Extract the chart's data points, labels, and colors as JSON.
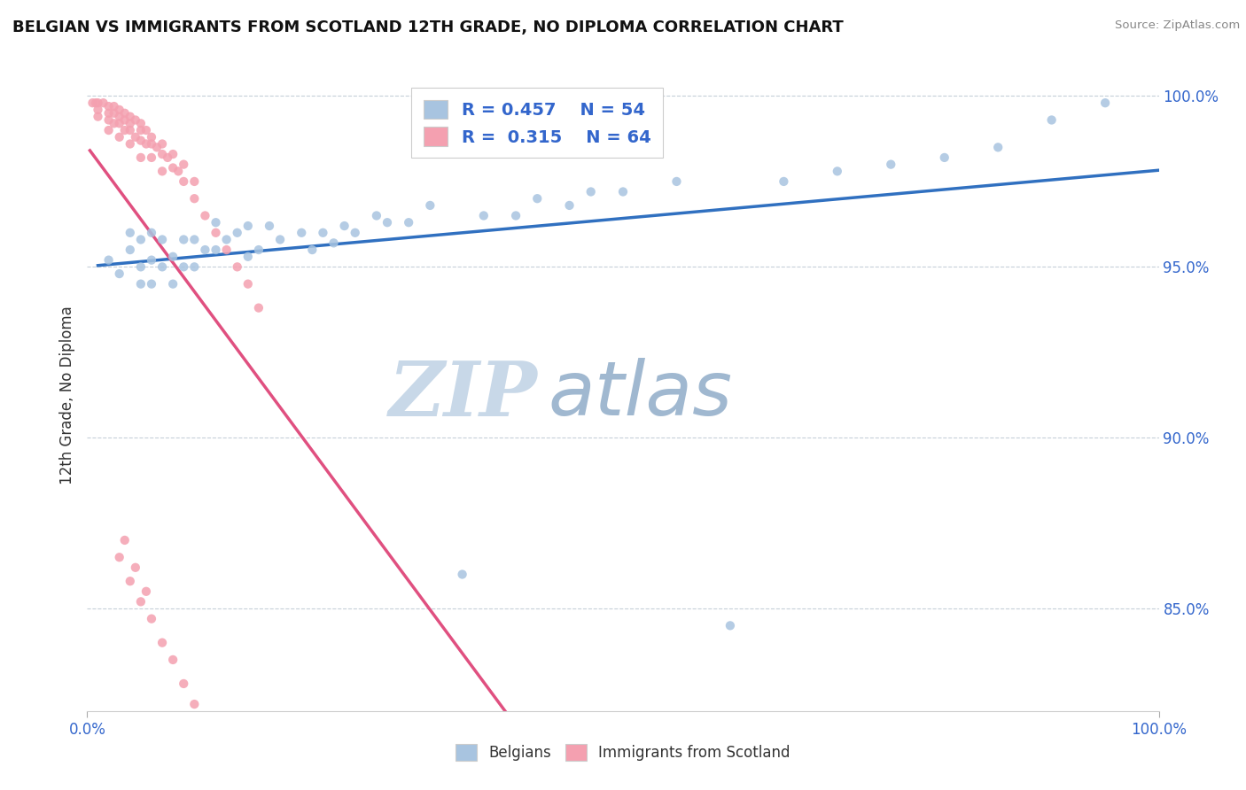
{
  "title": "BELGIAN VS IMMIGRANTS FROM SCOTLAND 12TH GRADE, NO DIPLOMA CORRELATION CHART",
  "source": "Source: ZipAtlas.com",
  "ylabel": "12th Grade, No Diploma",
  "xlim": [
    0.0,
    1.0
  ],
  "ylim": [
    0.82,
    1.005
  ],
  "x_tick_labels": [
    "0.0%",
    "100.0%"
  ],
  "y_tick_labels": [
    "85.0%",
    "90.0%",
    "95.0%",
    "100.0%"
  ],
  "y_tick_values": [
    0.85,
    0.9,
    0.95,
    1.0
  ],
  "belgian_R": 0.457,
  "belgian_N": 54,
  "scotland_R": 0.315,
  "scotland_N": 64,
  "belgian_color": "#a8c4e0",
  "scotland_color": "#f4a0b0",
  "belgian_line_color": "#3070c0",
  "scotland_line_color": "#e05080",
  "watermark_zip": "ZIP",
  "watermark_atlas": "atlas",
  "watermark_color_zip": "#c8d8e8",
  "watermark_color_atlas": "#a0b8d0",
  "belgian_x": [
    0.02,
    0.03,
    0.04,
    0.04,
    0.05,
    0.05,
    0.05,
    0.06,
    0.06,
    0.06,
    0.07,
    0.07,
    0.08,
    0.08,
    0.09,
    0.09,
    0.1,
    0.1,
    0.11,
    0.12,
    0.12,
    0.13,
    0.14,
    0.15,
    0.15,
    0.16,
    0.17,
    0.18,
    0.2,
    0.21,
    0.22,
    0.23,
    0.24,
    0.25,
    0.27,
    0.28,
    0.3,
    0.32,
    0.35,
    0.37,
    0.4,
    0.42,
    0.45,
    0.47,
    0.5,
    0.55,
    0.6,
    0.65,
    0.7,
    0.75,
    0.8,
    0.85,
    0.9,
    0.95
  ],
  "belgian_y": [
    0.952,
    0.948,
    0.96,
    0.955,
    0.95,
    0.945,
    0.958,
    0.945,
    0.952,
    0.96,
    0.95,
    0.958,
    0.945,
    0.953,
    0.95,
    0.958,
    0.95,
    0.958,
    0.955,
    0.955,
    0.963,
    0.958,
    0.96,
    0.953,
    0.962,
    0.955,
    0.962,
    0.958,
    0.96,
    0.955,
    0.96,
    0.957,
    0.962,
    0.96,
    0.965,
    0.963,
    0.963,
    0.968,
    0.86,
    0.965,
    0.965,
    0.97,
    0.968,
    0.972,
    0.972,
    0.975,
    0.845,
    0.975,
    0.978,
    0.98,
    0.982,
    0.985,
    0.993,
    0.998
  ],
  "scotland_x": [
    0.005,
    0.008,
    0.01,
    0.01,
    0.01,
    0.015,
    0.02,
    0.02,
    0.02,
    0.02,
    0.025,
    0.025,
    0.025,
    0.03,
    0.03,
    0.03,
    0.03,
    0.035,
    0.035,
    0.035,
    0.04,
    0.04,
    0.04,
    0.04,
    0.045,
    0.045,
    0.05,
    0.05,
    0.05,
    0.05,
    0.055,
    0.055,
    0.06,
    0.06,
    0.06,
    0.065,
    0.07,
    0.07,
    0.07,
    0.075,
    0.08,
    0.08,
    0.085,
    0.09,
    0.09,
    0.1,
    0.1,
    0.11,
    0.12,
    0.13,
    0.14,
    0.15,
    0.16,
    0.03,
    0.04,
    0.05,
    0.06,
    0.07,
    0.08,
    0.09,
    0.1,
    0.035,
    0.045,
    0.055
  ],
  "scotland_y": [
    0.998,
    0.998,
    0.998,
    0.996,
    0.994,
    0.998,
    0.997,
    0.995,
    0.993,
    0.99,
    0.997,
    0.995,
    0.992,
    0.996,
    0.994,
    0.992,
    0.988,
    0.995,
    0.993,
    0.99,
    0.994,
    0.992,
    0.99,
    0.986,
    0.993,
    0.988,
    0.992,
    0.99,
    0.987,
    0.982,
    0.99,
    0.986,
    0.988,
    0.986,
    0.982,
    0.985,
    0.986,
    0.983,
    0.978,
    0.982,
    0.983,
    0.979,
    0.978,
    0.98,
    0.975,
    0.975,
    0.97,
    0.965,
    0.96,
    0.955,
    0.95,
    0.945,
    0.938,
    0.865,
    0.858,
    0.852,
    0.847,
    0.84,
    0.835,
    0.828,
    0.822,
    0.87,
    0.862,
    0.855
  ]
}
